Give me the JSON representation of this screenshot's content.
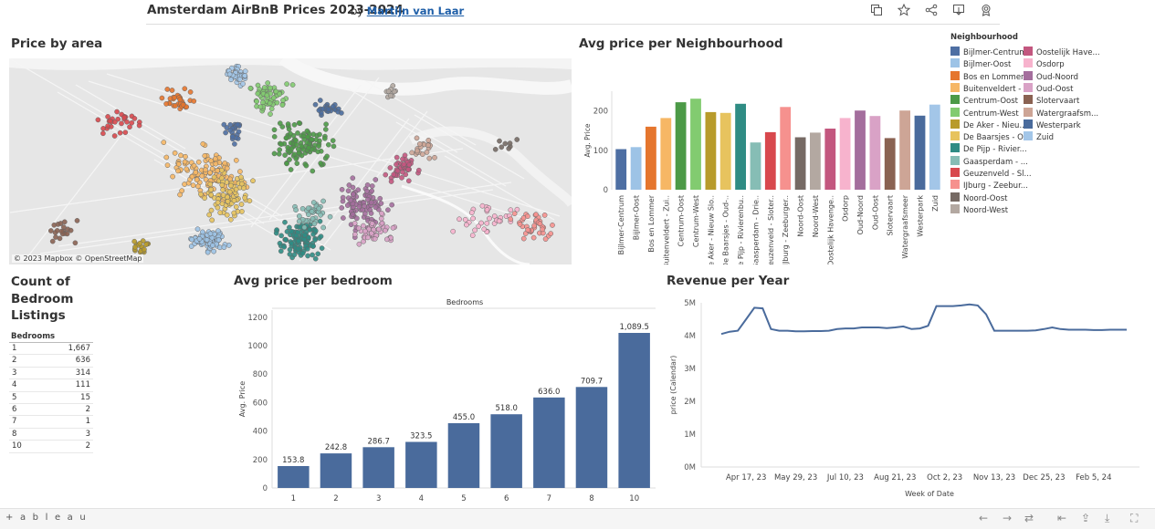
{
  "header": {
    "title": "Amsterdam AirBnB Prices 2023-2024",
    "by": "by",
    "author": "Martijn van Laar",
    "icons": [
      "copy-icon",
      "star-icon",
      "share-icon",
      "download-icon",
      "badge-icon"
    ]
  },
  "map": {
    "title": "Price by area",
    "attribution": "© 2023 Mapbox  © OpenStreetMap"
  },
  "legend": {
    "title": "Neighbourhood",
    "items": [
      {
        "label": "Bijlmer-Centrum",
        "color": "#4e6fa3"
      },
      {
        "label": "Bijlmer-Oost",
        "color": "#9dc3e6"
      },
      {
        "label": "Bos en Lommer",
        "color": "#e5762e"
      },
      {
        "label": "Buitenveldert - ...",
        "color": "#f6b765"
      },
      {
        "label": "Centrum-Oost",
        "color": "#4c9a47"
      },
      {
        "label": "Centrum-West",
        "color": "#82cb70"
      },
      {
        "label": "De Aker - Nieu...",
        "color": "#b89b2b"
      },
      {
        "label": "De Baarsjes - O...",
        "color": "#e7c35e"
      },
      {
        "label": "De Pijp - Rivier...",
        "color": "#2f8c84"
      },
      {
        "label": "Gaasperdam - ...",
        "color": "#86bdb5"
      },
      {
        "label": "Geuzenveld - Sl...",
        "color": "#d8484d"
      },
      {
        "label": "IJburg - Zeebur...",
        "color": "#f6918e"
      },
      {
        "label": "Noord-Oost",
        "color": "#766a64"
      },
      {
        "label": "Noord-West",
        "color": "#b3a8a1"
      },
      {
        "label": "Oostelijk Have...",
        "color": "#c3577f"
      },
      {
        "label": "Osdorp",
        "color": "#f7b3cd"
      },
      {
        "label": "Oud-Noord",
        "color": "#a46e9d"
      },
      {
        "label": "Oud-Oost",
        "color": "#d9a2c6"
      },
      {
        "label": "Slotervaart",
        "color": "#8a6252"
      },
      {
        "label": "Watergraafsm...",
        "color": "#cda596"
      },
      {
        "label": "Westerpark",
        "color": "#4a6b9c"
      },
      {
        "label": "Zuid",
        "color": "#a3c6e8"
      }
    ]
  },
  "count_table": {
    "title": "Count of Bedroom Listings",
    "column": "Bedrooms",
    "rows": [
      {
        "bedrooms": "1",
        "count": "1,667"
      },
      {
        "bedrooms": "2",
        "count": "636"
      },
      {
        "bedrooms": "3",
        "count": "314"
      },
      {
        "bedrooms": "4",
        "count": "111"
      },
      {
        "bedrooms": "5",
        "count": "15"
      },
      {
        "bedrooms": "6",
        "count": "2"
      },
      {
        "bedrooms": "7",
        "count": "1"
      },
      {
        "bedrooms": "8",
        "count": "3"
      },
      {
        "bedrooms": "10",
        "count": "2"
      }
    ]
  },
  "footer": {
    "logo": "+ a b l e a u"
  },
  "chart_data": [
    {
      "id": "neighbourhood",
      "type": "bar",
      "title": "Avg price per Neighbourhood",
      "xlabel": "",
      "ylabel": "Avg. Price",
      "ylim": [
        0,
        250
      ],
      "yticks": [
        0,
        100,
        200
      ],
      "categories": [
        "Bijlmer-Centrum",
        "Bijlmer-Oost",
        "Bos en Lommer",
        "Buitenveldert - Zui..",
        "Centrum-Oost",
        "Centrum-West",
        "De Aker - Nieuw Slo..",
        "De Baarsjes - Oud-..",
        "De Pijp - Rivierenbu..",
        "Gaasperdam - Drie..",
        "Geuzenveld - Sloter..",
        "IJburg - Zeeburger..",
        "Noord-Oost",
        "Noord-West",
        "Oostelijk Havenge..",
        "Osdorp",
        "Oud-Noord",
        "Oud-Oost",
        "Slotervaart",
        "Watergraafsmeer",
        "Westerpark",
        "Zuid"
      ],
      "values": [
        103,
        108,
        160,
        182,
        222,
        231,
        197,
        195,
        218,
        120,
        146,
        210,
        133,
        145,
        155,
        182,
        201,
        187,
        131,
        201,
        188,
        216
      ]
    },
    {
      "id": "bedroom",
      "type": "bar",
      "title": "Avg price per bedroom",
      "header": "Bedrooms",
      "xlabel": "",
      "ylabel": "Avg. Price",
      "ylim": [
        0,
        1250
      ],
      "yticks": [
        0,
        200,
        400,
        600,
        800,
        1000,
        1200
      ],
      "categories": [
        "1",
        "2",
        "3",
        "4",
        "5",
        "6",
        "7",
        "8",
        "10"
      ],
      "values": [
        153.8,
        242.8,
        286.7,
        323.5,
        455.0,
        518.0,
        636.0,
        709.7,
        1089.5
      ],
      "labels": [
        "153.8",
        "242.8",
        "286.7",
        "323.5",
        "455.0",
        "518.0",
        "636.0",
        "709.7",
        "1,089.5"
      ],
      "color": "#4a6b9c"
    },
    {
      "id": "revenue",
      "type": "line",
      "title": "Revenue per Year",
      "xlabel": "Week of Date",
      "ylabel": "price (Calendar)",
      "ylim": [
        0,
        5
      ],
      "yticks": [
        "0M",
        "1M",
        "2M",
        "3M",
        "4M",
        "5M"
      ],
      "xticks": [
        "Apr 17, 23",
        "May 29, 23",
        "Jul 10, 23",
        "Aug 21, 23",
        "Oct 2, 23",
        "Nov 13, 23",
        "Dec 25, 23",
        "Feb 5, 24"
      ],
      "x": [
        "Mar 27, 23",
        "Apr 3, 23",
        "Apr 10, 23",
        "Apr 17, 23",
        "Apr 24, 23",
        "May 1, 23",
        "May 8, 23",
        "May 15, 23",
        "May 22, 23",
        "May 29, 23",
        "Jun 5, 23",
        "Jun 12, 23",
        "Jun 19, 23",
        "Jun 26, 23",
        "Jul 3, 23",
        "Jul 10, 23",
        "Jul 17, 23",
        "Jul 24, 23",
        "Jul 31, 23",
        "Aug 7, 23",
        "Aug 14, 23",
        "Aug 21, 23",
        "Aug 28, 23",
        "Sep 4, 23",
        "Sep 11, 23",
        "Sep 18, 23",
        "Sep 25, 23",
        "Oct 2, 23",
        "Oct 9, 23",
        "Oct 16, 23",
        "Oct 23, 23",
        "Oct 30, 23",
        "Nov 6, 23",
        "Nov 13, 23",
        "Nov 20, 23",
        "Nov 27, 23",
        "Dec 4, 23",
        "Dec 11, 23",
        "Dec 18, 23",
        "Dec 25, 23",
        "Jan 1, 24",
        "Jan 8, 24",
        "Jan 15, 24",
        "Jan 22, 24",
        "Jan 29, 24",
        "Feb 5, 24",
        "Feb 12, 24",
        "Feb 19, 24",
        "Feb 26, 24",
        "Mar 4, 24"
      ],
      "values": [
        4.05,
        4.12,
        4.15,
        4.5,
        4.85,
        4.83,
        4.2,
        4.15,
        4.15,
        4.13,
        4.13,
        4.14,
        4.14,
        4.15,
        4.2,
        4.22,
        4.22,
        4.25,
        4.25,
        4.25,
        4.23,
        4.25,
        4.28,
        4.2,
        4.22,
        4.3,
        4.9,
        4.9,
        4.9,
        4.92,
        4.95,
        4.92,
        4.65,
        4.15,
        4.15,
        4.15,
        4.15,
        4.15,
        4.16,
        4.2,
        4.25,
        4.2,
        4.18,
        4.18,
        4.18,
        4.17,
        4.17,
        4.18,
        4.18,
        4.18
      ],
      "color": "#4a6b9c"
    }
  ]
}
